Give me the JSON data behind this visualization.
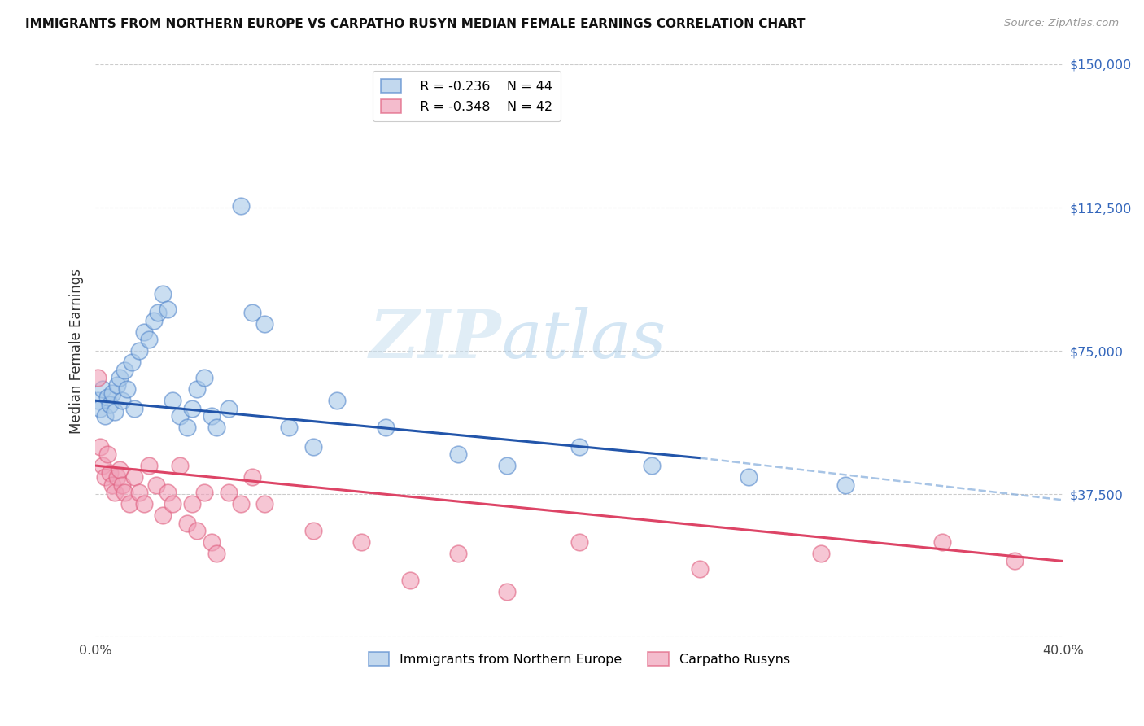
{
  "title": "IMMIGRANTS FROM NORTHERN EUROPE VS CARPATHO RUSYN MEDIAN FEMALE EARNINGS CORRELATION CHART",
  "source": "Source: ZipAtlas.com",
  "ylabel": "Median Female Earnings",
  "xlim": [
    0.0,
    0.4
  ],
  "ylim": [
    0,
    150000
  ],
  "yticks": [
    0,
    37500,
    75000,
    112500,
    150000
  ],
  "ytick_labels": [
    "",
    "$37,500",
    "$75,000",
    "$112,500",
    "$150,000"
  ],
  "xticks": [
    0.0,
    0.1,
    0.2,
    0.3,
    0.4
  ],
  "xtick_labels": [
    "0.0%",
    "",
    "",
    "",
    "40.0%"
  ],
  "watermark_zip": "ZIP",
  "watermark_atlas": "atlas",
  "legend_blue_r": "R = -0.236",
  "legend_blue_n": "N = 44",
  "legend_pink_r": "R = -0.348",
  "legend_pink_n": "N = 42",
  "blue_color": "#a8c8e8",
  "pink_color": "#f0a0b8",
  "blue_edge_color": "#5588cc",
  "pink_edge_color": "#e06080",
  "trendline_blue_color": "#2255aa",
  "trendline_pink_color": "#dd4466",
  "trendline_blue_dash_color": "#8ab0dd",
  "blue_scatter_x": [
    0.001,
    0.002,
    0.003,
    0.004,
    0.005,
    0.006,
    0.007,
    0.008,
    0.009,
    0.01,
    0.011,
    0.012,
    0.013,
    0.015,
    0.016,
    0.018,
    0.02,
    0.022,
    0.024,
    0.026,
    0.028,
    0.03,
    0.032,
    0.035,
    0.038,
    0.04,
    0.042,
    0.045,
    0.048,
    0.05,
    0.055,
    0.06,
    0.065,
    0.07,
    0.08,
    0.09,
    0.1,
    0.12,
    0.15,
    0.17,
    0.2,
    0.23,
    0.27,
    0.31
  ],
  "blue_scatter_y": [
    62000,
    60000,
    65000,
    58000,
    63000,
    61000,
    64000,
    59000,
    66000,
    68000,
    62000,
    70000,
    65000,
    72000,
    60000,
    75000,
    80000,
    78000,
    83000,
    85000,
    90000,
    86000,
    62000,
    58000,
    55000,
    60000,
    65000,
    68000,
    58000,
    55000,
    60000,
    113000,
    85000,
    82000,
    55000,
    50000,
    62000,
    55000,
    48000,
    45000,
    50000,
    45000,
    42000,
    40000
  ],
  "pink_scatter_x": [
    0.001,
    0.002,
    0.003,
    0.004,
    0.005,
    0.006,
    0.007,
    0.008,
    0.009,
    0.01,
    0.011,
    0.012,
    0.014,
    0.016,
    0.018,
    0.02,
    0.022,
    0.025,
    0.028,
    0.03,
    0.032,
    0.035,
    0.038,
    0.04,
    0.042,
    0.045,
    0.048,
    0.05,
    0.055,
    0.06,
    0.065,
    0.07,
    0.09,
    0.11,
    0.13,
    0.15,
    0.17,
    0.2,
    0.25,
    0.3,
    0.35,
    0.38
  ],
  "pink_scatter_y": [
    68000,
    50000,
    45000,
    42000,
    48000,
    43000,
    40000,
    38000,
    42000,
    44000,
    40000,
    38000,
    35000,
    42000,
    38000,
    35000,
    45000,
    40000,
    32000,
    38000,
    35000,
    45000,
    30000,
    35000,
    28000,
    38000,
    25000,
    22000,
    38000,
    35000,
    42000,
    35000,
    28000,
    25000,
    15000,
    22000,
    12000,
    25000,
    18000,
    22000,
    25000,
    20000
  ],
  "background_color": "#ffffff",
  "grid_color": "#cccccc",
  "blue_trendline_x0": 0.0,
  "blue_trendline_y0": 62000,
  "blue_trendline_x1": 0.25,
  "blue_trendline_y1": 47000,
  "blue_trendline_xd": 0.25,
  "blue_trendline_yd": 47000,
  "blue_trendline_x2": 0.4,
  "blue_trendline_y2": 36000,
  "pink_trendline_x0": 0.0,
  "pink_trendline_y0": 45000,
  "pink_trendline_x1": 0.4,
  "pink_trendline_y1": 20000
}
